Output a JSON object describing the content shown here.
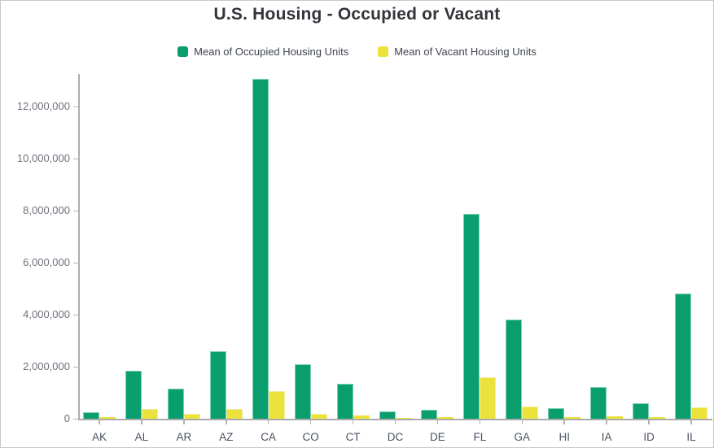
{
  "title": "U.S. Housing - Occupied or Vacant",
  "legend": [
    {
      "label": "Mean of Occupied Housing Units",
      "color": "#0a9e6e"
    },
    {
      "label": "Mean of Vacant Housing Units",
      "color": "#ece23c"
    }
  ],
  "chart_data": {
    "type": "bar",
    "title": "U.S. Housing - Occupied or Vacant",
    "categories": [
      "AK",
      "AL",
      "AR",
      "AZ",
      "CA",
      "CO",
      "CT",
      "DC",
      "DE",
      "FL",
      "GA",
      "HI",
      "IA",
      "ID",
      "IL"
    ],
    "series": [
      {
        "name": "Mean of Occupied Housing Units",
        "color": "#0a9e6e",
        "edge_color": "#7fd2b4",
        "values": [
          250000,
          1840000,
          1150000,
          2600000,
          13050000,
          2080000,
          1340000,
          270000,
          340000,
          7880000,
          3800000,
          420000,
          1220000,
          600000,
          4820000
        ]
      },
      {
        "name": "Mean of Vacant Housing Units",
        "color": "#ece23c",
        "edge_color": "#f2ed9e",
        "values": [
          60000,
          360000,
          180000,
          380000,
          1060000,
          190000,
          120000,
          30000,
          50000,
          1590000,
          460000,
          60000,
          100000,
          60000,
          450000
        ]
      }
    ],
    "y_ticks": [
      0,
      2000000,
      4000000,
      6000000,
      8000000,
      10000000,
      12000000
    ],
    "y_tick_labels": [
      "0",
      "2,000,000",
      "4,000,000",
      "6,000,000",
      "8,000,000",
      "10,000,000",
      "12,000,000"
    ],
    "ylim": [
      0,
      13250000
    ],
    "xlabel": "",
    "ylabel": "",
    "grid": false,
    "legend_position": "top"
  },
  "colors": {
    "axis": "#ababab",
    "tick": "#b3b3b3",
    "y_label_text": "#70707c",
    "x_label_text": "#4a5160",
    "title_text": "#33343a",
    "legend_text": "#3f4450",
    "card_border": "#c9c9c9",
    "background": "#ffffff"
  }
}
